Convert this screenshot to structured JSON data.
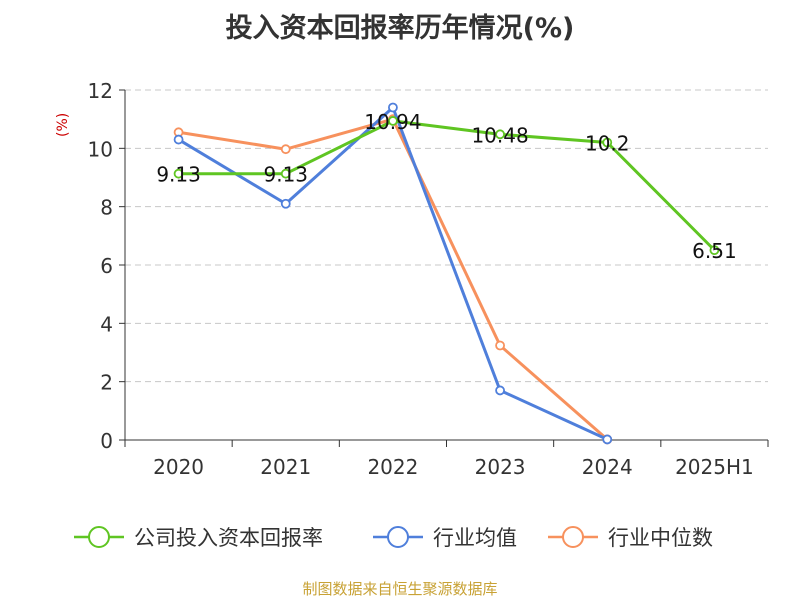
{
  "chart_data": {
    "type": "line",
    "title": "投入资本回报率历年情况(%)",
    "ylabel": "(%)",
    "xlabel": "",
    "categories": [
      "2020",
      "2021",
      "2022",
      "2023",
      "2024",
      "2025H1"
    ],
    "ylim": [
      0,
      12
    ],
    "yticks": [
      0,
      2,
      4,
      6,
      8,
      10,
      12
    ],
    "grid": true,
    "legend_position": "bottom",
    "series": [
      {
        "name": "公司投入资本回报率",
        "color": "#5fc522",
        "values": [
          9.13,
          9.13,
          10.94,
          10.48,
          10.2,
          6.51
        ],
        "labels": [
          "9.13",
          "9.13",
          "10.94",
          "10.48",
          "10.2",
          "6.51"
        ]
      },
      {
        "name": "行业均值",
        "color": "#4f7fdb",
        "values": [
          10.3,
          8.1,
          11.4,
          1.7,
          0.02,
          null
        ]
      },
      {
        "name": "行业中位数",
        "color": "#f7915d",
        "values": [
          10.55,
          9.97,
          11.0,
          3.24,
          0.02,
          null
        ]
      }
    ]
  },
  "footer": {
    "source": "制图数据来自恒生聚源数据库"
  }
}
